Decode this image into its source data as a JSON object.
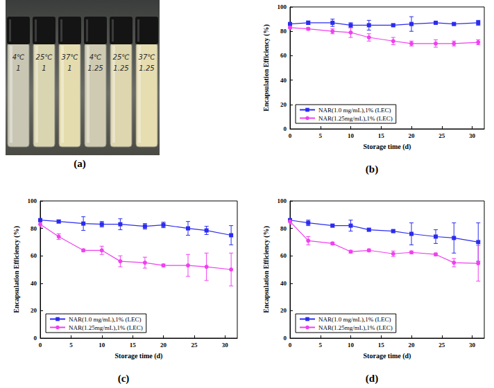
{
  "photo": {
    "label": "(a)",
    "vial_labels": [
      [
        "4℃",
        "1"
      ],
      [
        "25℃",
        "1"
      ],
      [
        "37℃",
        "1"
      ],
      [
        "4℃",
        "1.25"
      ],
      [
        "25℃",
        "1.25"
      ],
      [
        "37℃",
        "1.25"
      ]
    ]
  },
  "chart_data": [
    {
      "type": "line",
      "title": "(b)",
      "x_label": "Storage time (d)",
      "y_label": "Encapsulation Efficiency (%)",
      "x": [
        0,
        3,
        7,
        10,
        13,
        17,
        20,
        24,
        27,
        31
      ],
      "xlim": [
        0,
        32
      ],
      "xticks": [
        0,
        5,
        10,
        15,
        20,
        25,
        30
      ],
      "ylim": [
        0,
        100
      ],
      "yticks": [
        0,
        20,
        40,
        60,
        80,
        100
      ],
      "legend": "lower left",
      "grid": false,
      "series": [
        {
          "name": "NAR(1.0 mg/mL),1% (LEC)",
          "color": "#2b2bf0",
          "marker": "square",
          "line_style": "solid",
          "values": [
            86,
            87,
            87,
            85,
            85,
            85,
            86,
            87,
            86,
            87
          ],
          "errors": [
            1,
            1.5,
            3,
            2,
            4,
            1,
            6,
            1,
            1,
            2
          ]
        },
        {
          "name": "NAR(1.25mg/mL),1% (LEC)",
          "color": "#f040f0",
          "marker": "circle",
          "line_style": "solid",
          "values": [
            83,
            82,
            80,
            79,
            75,
            72,
            70,
            70,
            70,
            71
          ],
          "errors": [
            1,
            1,
            2,
            4,
            3,
            3,
            2,
            3,
            2,
            2
          ]
        }
      ]
    },
    {
      "type": "line",
      "title": "(c)",
      "x_label": "Storage time (d)",
      "y_label": "Encapsulation Efficiency (%)",
      "x": [
        0,
        3,
        7,
        10,
        13,
        17,
        20,
        24,
        27,
        31
      ],
      "xlim": [
        0,
        32
      ],
      "xticks": [
        0,
        5,
        10,
        15,
        20,
        25,
        30
      ],
      "ylim": [
        0,
        100
      ],
      "yticks": [
        0,
        20,
        40,
        60,
        80,
        100
      ],
      "legend": "lower left",
      "grid": false,
      "series": [
        {
          "name": "NAR(1.0 mg/mL),1% (LEC)",
          "color": "#2b2bf0",
          "marker": "square",
          "line_style": "solid",
          "values": [
            86,
            85,
            83.5,
            83,
            83,
            81.5,
            82.5,
            80,
            78.5,
            75
          ],
          "errors": [
            1,
            1,
            5,
            2,
            4,
            2,
            2,
            5,
            3,
            7
          ]
        },
        {
          "name": "NAR(1.25mg/mL),1% (LEC)",
          "color": "#f040f0",
          "marker": "circle",
          "line_style": "solid",
          "values": [
            83,
            74,
            64,
            64,
            56,
            55,
            53,
            53,
            52,
            50
          ],
          "errors": [
            2,
            2,
            1,
            3,
            4,
            4,
            1,
            8,
            10,
            12
          ]
        }
      ]
    },
    {
      "type": "line",
      "title": "(d)",
      "x_label": "Storage time (d)",
      "y_label": "Encapsulation Efficiency (%)",
      "x": [
        0,
        3,
        7,
        10,
        13,
        17,
        20,
        24,
        27,
        31
      ],
      "xlim": [
        0,
        32
      ],
      "xticks": [
        0,
        5,
        10,
        15,
        20,
        25,
        30
      ],
      "ylim": [
        0,
        100
      ],
      "yticks": [
        0,
        20,
        40,
        60,
        80,
        100
      ],
      "legend": "lower left",
      "grid": false,
      "series": [
        {
          "name": "NAR(1.0 mg/mL),1% (LEC)",
          "color": "#2b2bf0",
          "marker": "square",
          "line_style": "solid",
          "values": [
            86,
            84,
            82,
            82,
            79,
            78,
            76,
            74,
            73,
            70
          ],
          "errors": [
            1,
            2,
            1,
            4,
            1,
            1,
            8,
            5,
            11,
            14
          ]
        },
        {
          "name": "NAR(1.25mg/mL),1% (LEC)",
          "color": "#f040f0",
          "marker": "circle",
          "line_style": "solid",
          "values": [
            85,
            71,
            69,
            63,
            64,
            61.5,
            62.5,
            61,
            55,
            54.5
          ],
          "errors": [
            2,
            3,
            1,
            1,
            1,
            2,
            1,
            1,
            3,
            13
          ]
        }
      ]
    }
  ]
}
